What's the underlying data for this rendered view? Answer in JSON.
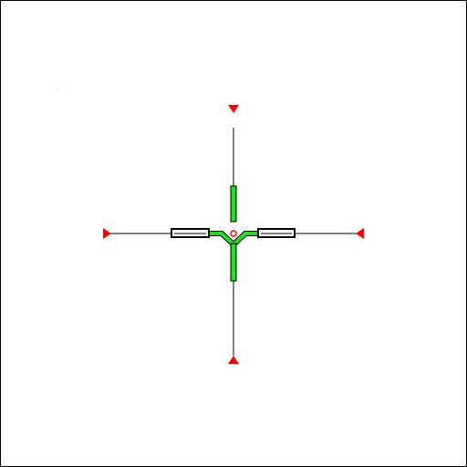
{
  "reticle": {
    "line_color": "#000000",
    "marker_color": "#ff0000",
    "bar_color": "#22dd22",
    "post_fill": "#ffffff",
    "post_stroke": "#000000",
    "center_dot_color": "#ff0000",
    "markers": [
      "marker-top",
      "marker-bottom",
      "marker-left",
      "marker-right"
    ]
  }
}
